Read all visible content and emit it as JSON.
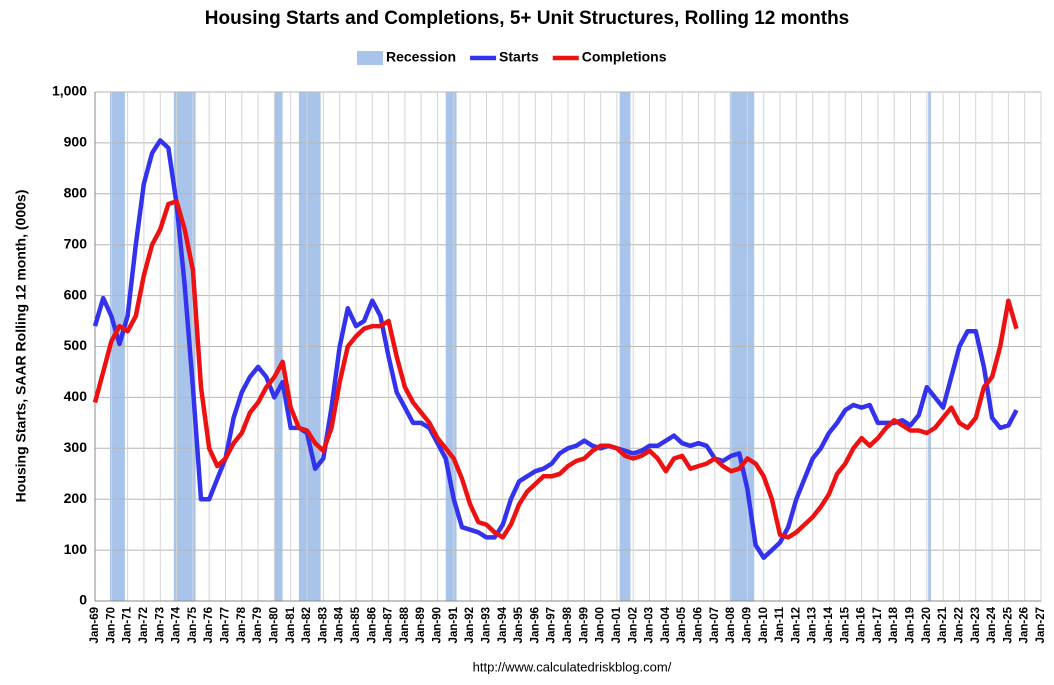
{
  "chart_data": {
    "type": "line",
    "title": "Housing Starts and Completions, 5+ Unit Structures, Rolling 12 months",
    "y_label": "Housing Starts, SAAR Rolling 12 month, (000s)",
    "source": "http://www.calculatedriskblog.com/",
    "grid": true,
    "legend": "top",
    "recessions": {
      "name": "Recession",
      "color": "#a9c4ea",
      "ranges": [
        {
          "start": "1969-12",
          "end": "1970-11"
        },
        {
          "start": "1973-11",
          "end": "1975-03"
        },
        {
          "start": "1980-01",
          "end": "1980-07"
        },
        {
          "start": "1981-07",
          "end": "1982-11"
        },
        {
          "start": "1990-07",
          "end": "1991-03"
        },
        {
          "start": "2001-03",
          "end": "2001-11"
        },
        {
          "start": "2007-12",
          "end": "2009-06"
        },
        {
          "start": "2020-02",
          "end": "2020-04"
        }
      ]
    },
    "x": [
      "1969-01",
      "1969-07",
      "1970-01",
      "1970-07",
      "1971-01",
      "1971-07",
      "1972-01",
      "1972-07",
      "1973-01",
      "1973-07",
      "1974-01",
      "1974-07",
      "1975-01",
      "1975-07",
      "1976-01",
      "1976-07",
      "1977-01",
      "1977-07",
      "1978-01",
      "1978-07",
      "1979-01",
      "1979-07",
      "1980-01",
      "1980-07",
      "1981-01",
      "1981-07",
      "1982-01",
      "1982-07",
      "1983-01",
      "1983-07",
      "1984-01",
      "1984-07",
      "1985-01",
      "1985-07",
      "1986-01",
      "1986-07",
      "1987-01",
      "1987-07",
      "1988-01",
      "1988-07",
      "1989-01",
      "1989-07",
      "1990-01",
      "1990-07",
      "1991-01",
      "1991-07",
      "1992-01",
      "1992-07",
      "1993-01",
      "1993-07",
      "1994-01",
      "1994-07",
      "1995-01",
      "1995-07",
      "1996-01",
      "1996-07",
      "1997-01",
      "1997-07",
      "1998-01",
      "1998-07",
      "1999-01",
      "1999-07",
      "2000-01",
      "2000-07",
      "2001-01",
      "2001-07",
      "2002-01",
      "2002-07",
      "2003-01",
      "2003-07",
      "2004-01",
      "2004-07",
      "2005-01",
      "2005-07",
      "2006-01",
      "2006-07",
      "2007-01",
      "2007-07",
      "2008-01",
      "2008-07",
      "2009-01",
      "2009-07",
      "2010-01",
      "2010-07",
      "2011-01",
      "2011-07",
      "2012-01",
      "2012-07",
      "2013-01",
      "2013-07",
      "2014-01",
      "2014-07",
      "2015-01",
      "2015-07",
      "2016-01",
      "2016-07",
      "2017-01",
      "2017-07",
      "2018-01",
      "2018-07",
      "2019-01",
      "2019-07",
      "2020-01",
      "2020-07",
      "2021-01",
      "2021-07",
      "2022-01",
      "2022-07",
      "2023-01",
      "2023-07",
      "2024-01",
      "2024-07",
      "2025-01",
      "2025-07"
    ],
    "series": [
      {
        "name": "Starts",
        "color": "#3333ee",
        "values": [
          540,
          595,
          560,
          505,
          560,
          700,
          820,
          880,
          905,
          890,
          780,
          620,
          420,
          200,
          200,
          240,
          280,
          360,
          410,
          440,
          460,
          440,
          400,
          430,
          340,
          340,
          330,
          260,
          280,
          380,
          500,
          575,
          540,
          550,
          590,
          560,
          480,
          410,
          380,
          350,
          350,
          340,
          310,
          280,
          200,
          145,
          140,
          135,
          125,
          125,
          150,
          200,
          235,
          245,
          255,
          260,
          270,
          290,
          300,
          305,
          315,
          305,
          300,
          305,
          300,
          295,
          290,
          295,
          305,
          305,
          315,
          325,
          310,
          305,
          310,
          305,
          280,
          275,
          285,
          290,
          220,
          110,
          85,
          100,
          115,
          145,
          200,
          240,
          280,
          300,
          330,
          350,
          375,
          385,
          380,
          385,
          350,
          350,
          350,
          355,
          345,
          365,
          420,
          400,
          380,
          440,
          500,
          530,
          530,
          460,
          360,
          340,
          345,
          375
        ]
      },
      {
        "name": "Completions",
        "color": "#ee1111",
        "values": [
          390,
          450,
          510,
          540,
          530,
          560,
          640,
          700,
          730,
          780,
          785,
          730,
          650,
          420,
          300,
          265,
          280,
          310,
          330,
          370,
          390,
          420,
          440,
          470,
          380,
          340,
          335,
          310,
          295,
          340,
          430,
          500,
          520,
          535,
          540,
          540,
          550,
          480,
          420,
          390,
          370,
          350,
          320,
          300,
          280,
          240,
          190,
          155,
          150,
          135,
          125,
          150,
          190,
          215,
          230,
          245,
          245,
          250,
          265,
          275,
          280,
          295,
          305,
          305,
          300,
          285,
          280,
          285,
          295,
          280,
          255,
          280,
          285,
          260,
          265,
          270,
          280,
          265,
          255,
          260,
          280,
          270,
          245,
          200,
          130,
          125,
          135,
          150,
          165,
          185,
          210,
          250,
          270,
          300,
          320,
          305,
          320,
          340,
          355,
          345,
          335,
          335,
          330,
          340,
          360,
          380,
          350,
          340,
          360,
          420,
          440,
          500,
          590,
          535
        ]
      }
    ],
    "ylim": [
      0,
      1000
    ],
    "yticks": [
      0,
      100,
      200,
      300,
      400,
      500,
      600,
      700,
      800,
      900,
      {
        "value": 1000,
        "label": "1,000"
      }
    ],
    "xlim": [
      "1969-01",
      "2027-01"
    ],
    "xticks": [
      {
        "value": "1969-01",
        "label": "Jan-69"
      },
      {
        "value": "1970-01",
        "label": "Jan-70"
      },
      {
        "value": "1971-01",
        "label": "Jan-71"
      },
      {
        "value": "1972-01",
        "label": "Jan-72"
      },
      {
        "value": "1973-01",
        "label": "Jan-73"
      },
      {
        "value": "1974-01",
        "label": "Jan-74"
      },
      {
        "value": "1975-01",
        "label": "Jan-75"
      },
      {
        "value": "1976-01",
        "label": "Jan-76"
      },
      {
        "value": "1977-01",
        "label": "Jan-77"
      },
      {
        "value": "1978-01",
        "label": "Jan-78"
      },
      {
        "value": "1979-01",
        "label": "Jan-79"
      },
      {
        "value": "1980-01",
        "label": "Jan-80"
      },
      {
        "value": "1981-01",
        "label": "Jan-81"
      },
      {
        "value": "1982-01",
        "label": "Jan-82"
      },
      {
        "value": "1983-01",
        "label": "Jan-83"
      },
      {
        "value": "1984-01",
        "label": "Jan-84"
      },
      {
        "value": "1985-01",
        "label": "Jan-85"
      },
      {
        "value": "1986-01",
        "label": "Jan-86"
      },
      {
        "value": "1987-01",
        "label": "Jan-87"
      },
      {
        "value": "1988-01",
        "label": "Jan-88"
      },
      {
        "value": "1989-01",
        "label": "Jan-89"
      },
      {
        "value": "1990-01",
        "label": "Jan-90"
      },
      {
        "value": "1991-01",
        "label": "Jan-91"
      },
      {
        "value": "1992-01",
        "label": "Jan-92"
      },
      {
        "value": "1993-01",
        "label": "Jan-93"
      },
      {
        "value": "1994-01",
        "label": "Jan-94"
      },
      {
        "value": "1995-01",
        "label": "Jan-95"
      },
      {
        "value": "1996-01",
        "label": "Jan-96"
      },
      {
        "value": "1997-01",
        "label": "Jan-97"
      },
      {
        "value": "1998-01",
        "label": "Jan-98"
      },
      {
        "value": "1999-01",
        "label": "Jan-99"
      },
      {
        "value": "2000-01",
        "label": "Jan-00"
      },
      {
        "value": "2001-01",
        "label": "Jan-01"
      },
      {
        "value": "2002-01",
        "label": "Jan-02"
      },
      {
        "value": "2003-01",
        "label": "Jan-03"
      },
      {
        "value": "2004-01",
        "label": "Jan-04"
      },
      {
        "value": "2005-01",
        "label": "Jan-05"
      },
      {
        "value": "2006-01",
        "label": "Jan-06"
      },
      {
        "value": "2007-01",
        "label": "Jan-07"
      },
      {
        "value": "2008-01",
        "label": "Jan-08"
      },
      {
        "value": "2009-01",
        "label": "Jan-09"
      },
      {
        "value": "2010-01",
        "label": "Jan-10"
      },
      {
        "value": "2011-01",
        "label": "Jan-11"
      },
      {
        "value": "2012-01",
        "label": "Jan-12"
      },
      {
        "value": "2013-01",
        "label": "Jan-13"
      },
      {
        "value": "2014-01",
        "label": "Jan-14"
      },
      {
        "value": "2015-01",
        "label": "Jan-15"
      },
      {
        "value": "2016-01",
        "label": "Jan-16"
      },
      {
        "value": "2017-01",
        "label": "Jan-17"
      },
      {
        "value": "2018-01",
        "label": "Jan-18"
      },
      {
        "value": "2019-01",
        "label": "Jan-19"
      },
      {
        "value": "2020-01",
        "label": "Jan-20"
      },
      {
        "value": "2021-01",
        "label": "Jan-21"
      },
      {
        "value": "2022-01",
        "label": "Jan-22"
      },
      {
        "value": "2023-01",
        "label": "Jan-23"
      },
      {
        "value": "2024-01",
        "label": "Jan-24"
      },
      {
        "value": "2025-01",
        "label": "Jan-25"
      },
      {
        "value": "2026-01",
        "label": "Jan-26"
      },
      {
        "value": "2027-01",
        "label": "Jan-27"
      }
    ]
  }
}
